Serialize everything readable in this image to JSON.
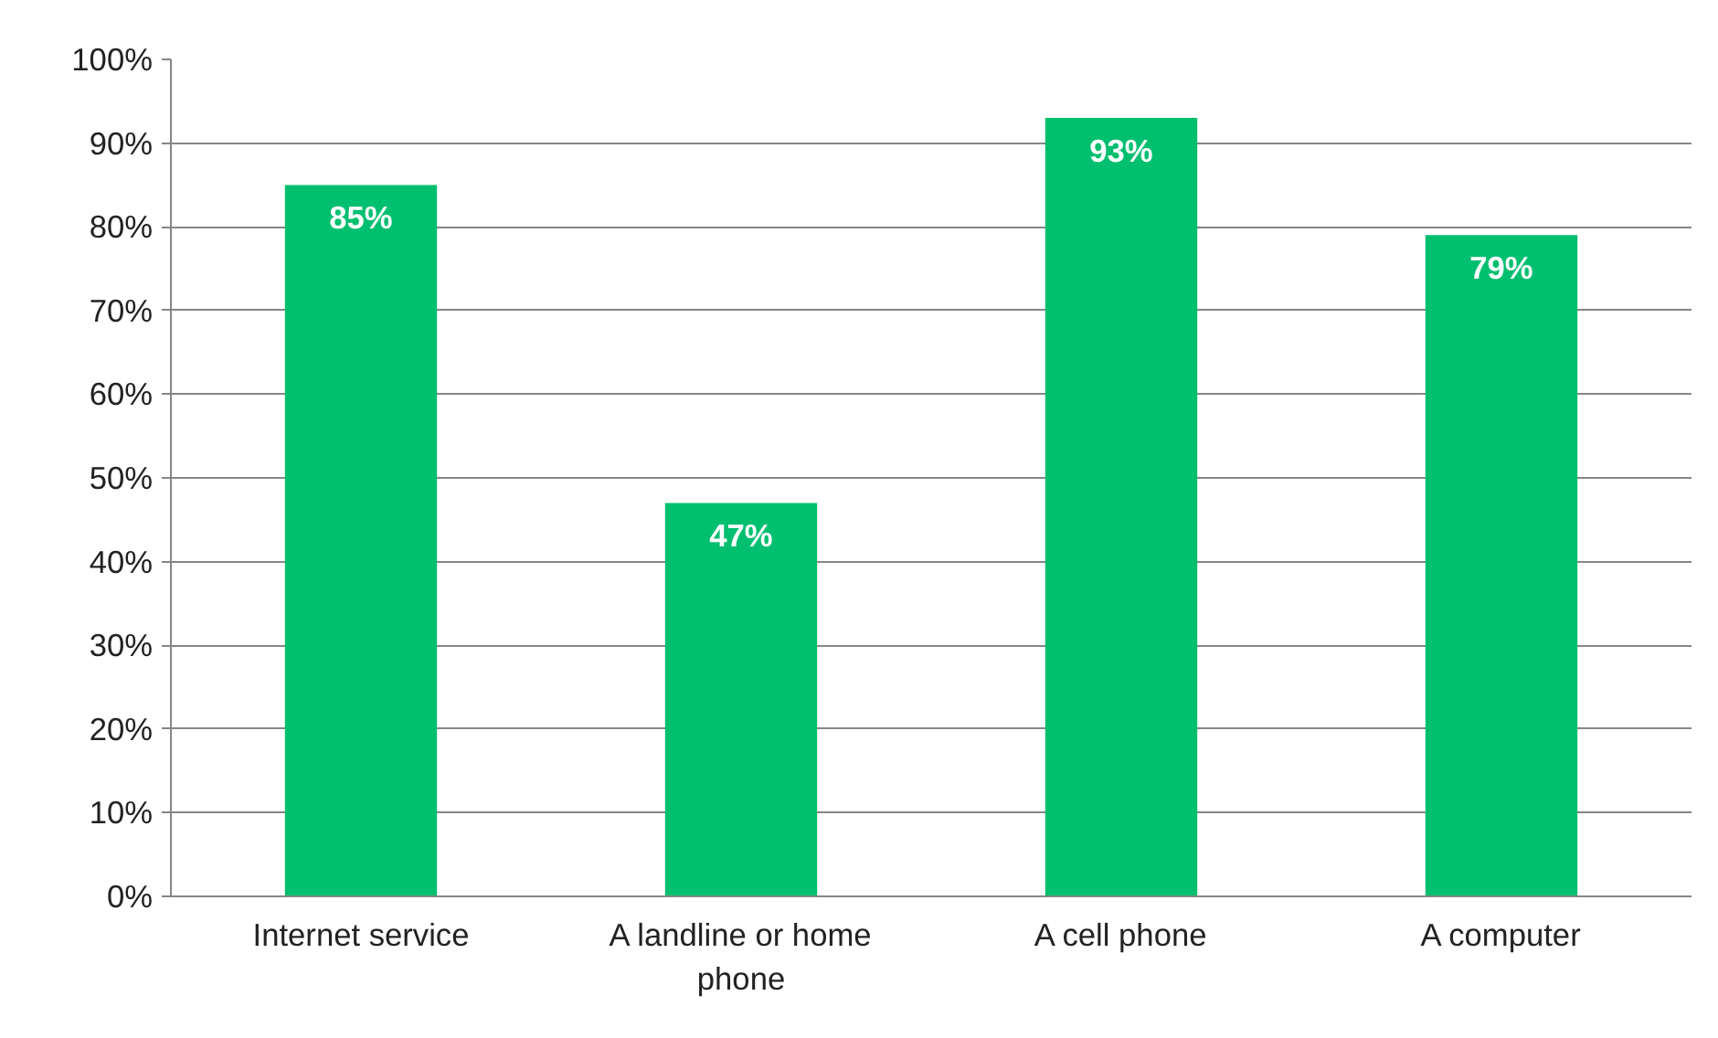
{
  "chart_data": {
    "type": "bar",
    "categories": [
      "Internet service",
      "A landline or home phone",
      "A cell phone",
      "A computer"
    ],
    "values": [
      85,
      47,
      93,
      79
    ],
    "value_labels": [
      "85%",
      "47%",
      "93%",
      "79%"
    ],
    "color": "#00bf6f",
    "ylim": [
      0,
      100
    ],
    "yticks": [
      {
        "value": 0,
        "label": "0%"
      },
      {
        "value": 10,
        "label": "10%"
      },
      {
        "value": 20,
        "label": "20%"
      },
      {
        "value": 30,
        "label": "30%"
      },
      {
        "value": 40,
        "label": "40%"
      },
      {
        "value": 50,
        "label": "50%"
      },
      {
        "value": 60,
        "label": "60%"
      },
      {
        "value": 70,
        "label": "70%"
      },
      {
        "value": 80,
        "label": "80%"
      },
      {
        "value": 90,
        "label": "90%"
      },
      {
        "value": 100,
        "label": "100%"
      }
    ],
    "grid": "y"
  }
}
